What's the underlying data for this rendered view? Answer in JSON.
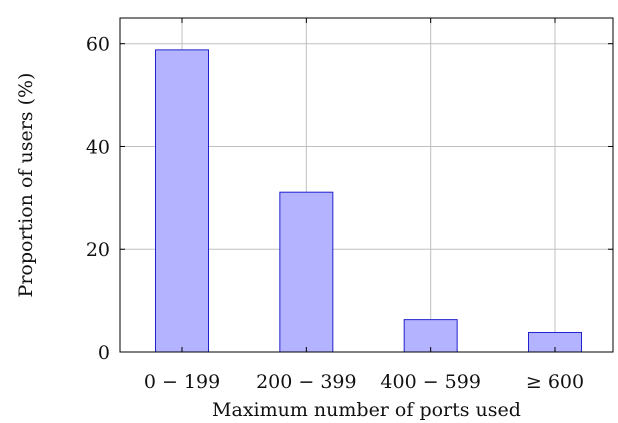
{
  "chart_data": {
    "type": "bar",
    "categories": [
      "0 − 199",
      "200 − 399",
      "400 − 599",
      "≥ 600"
    ],
    "values": [
      58.8,
      31.1,
      6.3,
      3.8
    ],
    "title": "",
    "xlabel": "Maximum number of ports used",
    "ylabel": "Proportion of users (%)",
    "ylim": [
      0,
      65
    ],
    "yticks": [
      0,
      20,
      40,
      60
    ],
    "grid": true,
    "colors": {
      "bar_fill": "#b3b3ff",
      "bar_stroke": "#2222cc",
      "grid": "#c0c0c0",
      "axis": "#000000"
    }
  }
}
